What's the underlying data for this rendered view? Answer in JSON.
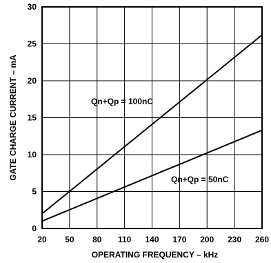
{
  "chart_data": {
    "type": "line",
    "title": "",
    "xlabel": "OPERATING FREQUENCY – kHz",
    "ylabel": "GATE CHARGE CURRENT – mA",
    "xlim": [
      20,
      260
    ],
    "ylim": [
      0,
      30
    ],
    "x_ticks": [
      20,
      50,
      80,
      110,
      140,
      170,
      200,
      230,
      260
    ],
    "y_ticks": [
      0,
      5,
      10,
      15,
      20,
      25,
      30
    ],
    "grid": true,
    "legend": "none",
    "series": [
      {
        "name": "Qn+Qp = 100nC",
        "x": [
          20,
          260
        ],
        "y": [
          2.0,
          26.2
        ]
      },
      {
        "name": "Qn+Qp = 50nC",
        "x": [
          20,
          260
        ],
        "y": [
          1.0,
          13.3
        ]
      }
    ],
    "annotations": [
      {
        "text": "Qn+Qp = 100nC",
        "series": 0
      },
      {
        "text": "Qn+Qp = 50nC",
        "series": 1
      }
    ]
  }
}
